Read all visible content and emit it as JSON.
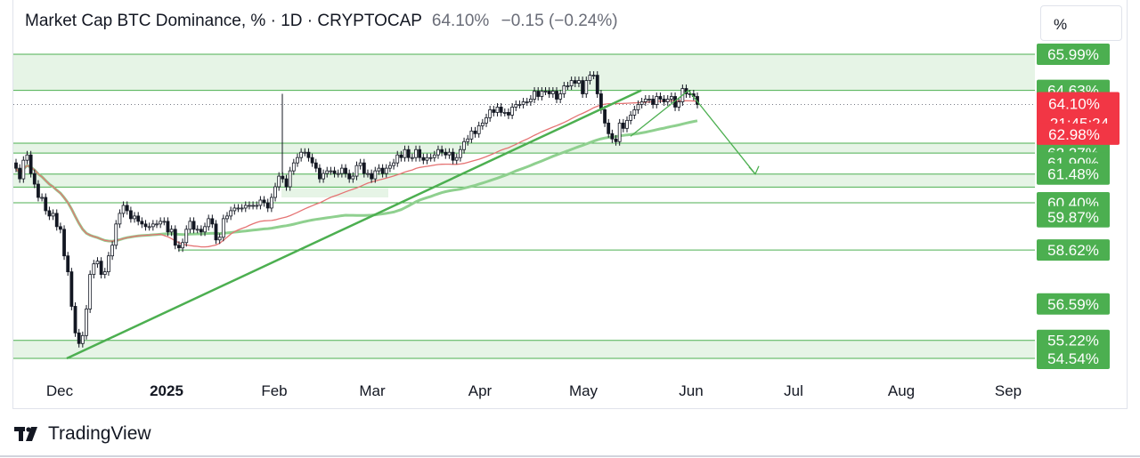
{
  "header": {
    "symbol": "Market Cap BTC Dominance, % · 1D · CRYPTOCAP",
    "price": "64.10%",
    "change": "−0.15 (−0.24%)"
  },
  "scale_button": "%",
  "footer": {
    "brand": "TradingView"
  },
  "colors": {
    "green": "#4caf50",
    "zone_fill": "#e6f4e6",
    "red_badge": "#f23645",
    "ma_red": "#e57373",
    "ma_green": "#8fd08f",
    "candle_up": "#131722",
    "candle_down": "#131722"
  },
  "chart_data": {
    "type": "candlestick",
    "ylim": [
      54.2,
      66.3
    ],
    "x_ticks": [
      "Dec",
      "2025",
      "Feb",
      "Mar",
      "Apr",
      "May",
      "Jun",
      "Jul",
      "Aug",
      "Sep"
    ],
    "current_price": {
      "label": "64.10%",
      "countdown": "21:45:24",
      "value": 64.1
    },
    "price_levels": [
      {
        "label": "65.99%",
        "value": 65.99
      },
      {
        "label": "64.63%",
        "value": 64.63
      },
      {
        "label": "62.98%",
        "value": 62.98,
        "style": "red"
      },
      {
        "label": "62.27%",
        "value": 62.27
      },
      {
        "label": "61.90%",
        "value": 61.9
      },
      {
        "label": "61.48%",
        "value": 61.48
      },
      {
        "label": "60.40%",
        "value": 60.4
      },
      {
        "label": "59.87%",
        "value": 59.87
      },
      {
        "label": "58.62%",
        "value": 58.62
      },
      {
        "label": "56.59%",
        "value": 56.59
      },
      {
        "label": "55.22%",
        "value": 55.22
      },
      {
        "label": "54.54%",
        "value": 54.54
      }
    ],
    "zones": [
      {
        "low": 64.63,
        "high": 65.99
      },
      {
        "low": 62.27,
        "high": 62.64
      },
      {
        "low": 60.99,
        "high": 61.48
      },
      {
        "low": 54.54,
        "high": 55.22
      }
    ],
    "h_lines": [
      60.4,
      58.62
    ],
    "candles_close": [
      61.7,
      61.3,
      62.0,
      62.2,
      61.5,
      61.1,
      60.6,
      60.6,
      60.1,
      59.9,
      60.0,
      59.5,
      59.4,
      58.4,
      57.8,
      56.5,
      55.5,
      55.1,
      55.4,
      56.4,
      57.7,
      58.1,
      58.2,
      57.7,
      57.8,
      58.4,
      58.8,
      59.6,
      60.0,
      60.3,
      60.1,
      59.8,
      59.9,
      59.7,
      59.6,
      59.5,
      59.5,
      59.6,
      59.6,
      59.7,
      59.7,
      59.3,
      59.4,
      58.8,
      58.7,
      58.9,
      59.4,
      59.7,
      59.4,
      59.4,
      59.3,
      59.5,
      59.8,
      59.6,
      59.0,
      59.1,
      59.8,
      59.9,
      60.1,
      60.2,
      60.2,
      60.2,
      60.3,
      60.3,
      60.3,
      60.3,
      60.5,
      60.4,
      60.2,
      60.6,
      61.0,
      61.4,
      61.3,
      61.0,
      61.6,
      61.9,
      62.1,
      62.3,
      62.3,
      62.1,
      61.9,
      61.7,
      61.3,
      61.5,
      61.6,
      61.6,
      61.5,
      61.5,
      61.7,
      61.5,
      61.3,
      61.4,
      61.8,
      61.9,
      61.5,
      61.5,
      61.3,
      61.6,
      61.7,
      61.5,
      61.7,
      61.8,
      61.9,
      62.2,
      62.1,
      62.4,
      62.1,
      62.1,
      62.4,
      62.1,
      62.0,
      62.1,
      62.1,
      62.2,
      62.4,
      62.3,
      62.2,
      62.3,
      62.0,
      62.1,
      62.4,
      62.7,
      62.8,
      63.1,
      63.0,
      63.3,
      63.4,
      63.6,
      63.9,
      63.8,
      64.0,
      63.8,
      63.8,
      63.7,
      64.0,
      64.1,
      64.1,
      64.2,
      64.2,
      64.3,
      64.6,
      64.4,
      64.6,
      64.6,
      64.5,
      64.6,
      64.3,
      64.5,
      64.8,
      64.8,
      65.0,
      64.9,
      65.0,
      64.5,
      65.0,
      65.2,
      65.2,
      64.5,
      63.9,
      63.4,
      63.0,
      62.8,
      62.7,
      63.4,
      63.2,
      63.5,
      63.7,
      63.9,
      64.1,
      64.2,
      64.3,
      64.3,
      64.1,
      64.4,
      64.3,
      64.2,
      64.3,
      64.4,
      64.0,
      64.2,
      64.7,
      64.5,
      64.5,
      64.4,
      64.1
    ]
  }
}
